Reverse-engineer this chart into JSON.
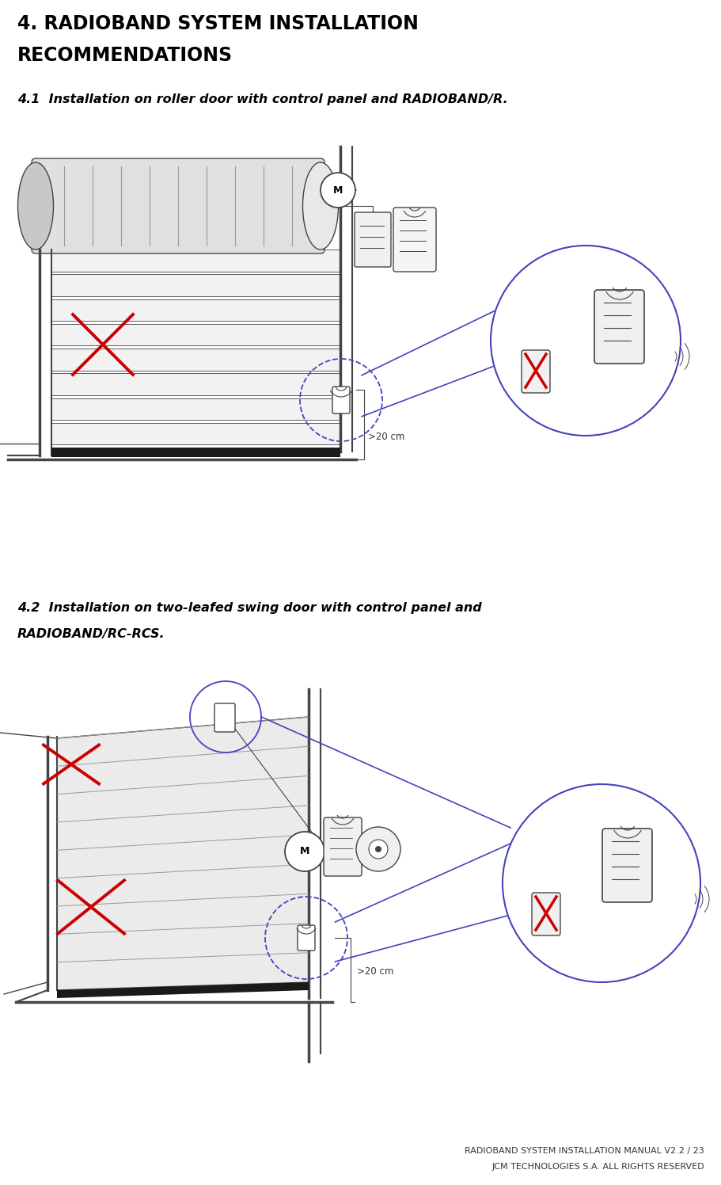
{
  "bg_color": "#ffffff",
  "title_line1": "4. RADIOBAND SYSTEM INSTALLATION",
  "title_line2": "RECOMMENDATIONS",
  "title_fontsize": 17,
  "subtitle1": "4.1  Installation on roller door with control panel and RADIOBAND/R.",
  "subtitle1_fontsize": 11.5,
  "subtitle2_line1": "4.2  Installation on two-leafed swing door with control panel and",
  "subtitle2_line2": "RADIOBAND/RC-RCS.",
  "subtitle2_fontsize": 11.5,
  "footer1": "RADIOBAND SYSTEM INSTALLATION MANUAL V2.2 / 23",
  "footer2": "JCM TECHNOLOGIES S.A. ALL RIGHTS RESERVED",
  "footer_fontsize": 8,
  "label_20cm": ">20 cm",
  "gray": "#444444",
  "lgray": "#999999",
  "blue": "#4444bb",
  "red": "#cc0000"
}
